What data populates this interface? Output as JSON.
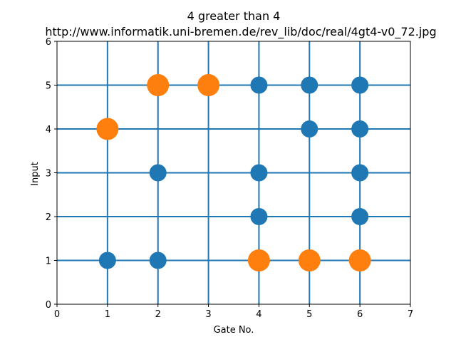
{
  "chart_data": {
    "type": "scatter",
    "title": "4 greater than 4",
    "subtitle": "http://www.informatik.uni-bremen.de/rev_lib/doc/real/4gt4-v0_72.jpg",
    "xlabel": "Gate No.",
    "ylabel": "Input",
    "xlim": [
      0,
      7
    ],
    "ylim": [
      0,
      6
    ],
    "xticks": [
      "0",
      "1",
      "2",
      "3",
      "4",
      "5",
      "6",
      "7"
    ],
    "yticks": [
      "0",
      "1",
      "2",
      "3",
      "4",
      "5",
      "6"
    ],
    "grid": "vertical lines at gates 1-6, horizontal lines at inputs 1-5",
    "line_color": "#1f77b4",
    "series": [
      {
        "color": "#1f77b4",
        "marker": "small",
        "points": [
          [
            1,
            1
          ],
          [
            2,
            1
          ],
          [
            2,
            3
          ],
          [
            4,
            2
          ],
          [
            4,
            3
          ],
          [
            4,
            5
          ],
          [
            5,
            4
          ],
          [
            5,
            5
          ],
          [
            6,
            2
          ],
          [
            6,
            3
          ],
          [
            6,
            4
          ],
          [
            6,
            5
          ]
        ]
      },
      {
        "color": "#ff7f0e",
        "marker": "large",
        "points": [
          [
            1,
            4
          ],
          [
            2,
            5
          ],
          [
            3,
            5
          ],
          [
            4,
            1
          ],
          [
            5,
            1
          ],
          [
            6,
            1
          ]
        ]
      }
    ]
  }
}
